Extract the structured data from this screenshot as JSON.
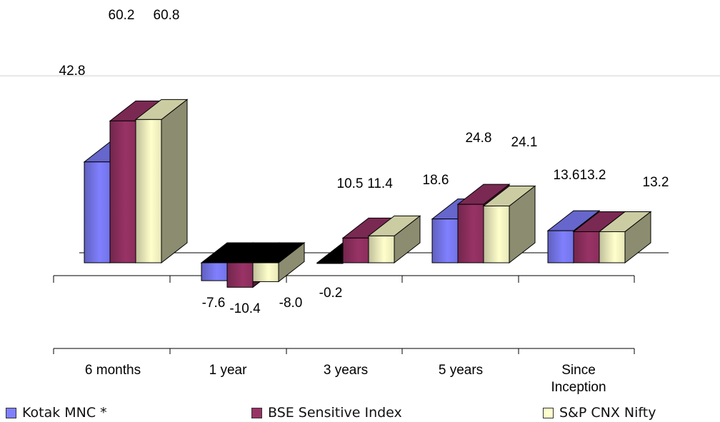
{
  "chart_data": {
    "type": "bar",
    "categories": [
      "6 months",
      "1 year",
      "3 years",
      "5 years",
      "Since Inception"
    ],
    "series": [
      {
        "name": "Kotak MNC *",
        "values": [
          42.8,
          -7.6,
          -0.2,
          18.6,
          13.6
        ]
      },
      {
        "name": "BSE Sensitive Index",
        "values": [
          60.2,
          -10.4,
          10.5,
          24.8,
          13.2
        ]
      },
      {
        "name": "S&P CNX Nifty",
        "values": [
          60.8,
          -8.0,
          11.4,
          24.1,
          13.2
        ]
      }
    ],
    "data_labels": [
      [
        "42.8",
        "-7.6",
        "-0.2",
        "18.6",
        "13.6"
      ],
      [
        "60.2",
        "-10.4",
        "10.5",
        "24.8",
        "13.2"
      ],
      [
        "60.8",
        "-8.0",
        "11.4",
        "24.1",
        "13.2"
      ]
    ],
    "ylim": [
      -12,
      65
    ],
    "three_d": true,
    "legend_position": "bottom",
    "colors": {
      "series": [
        "#8080ff",
        "#993366",
        "#ffffcc"
      ],
      "outline": "#000000",
      "divider": "#e6e6e6"
    }
  }
}
